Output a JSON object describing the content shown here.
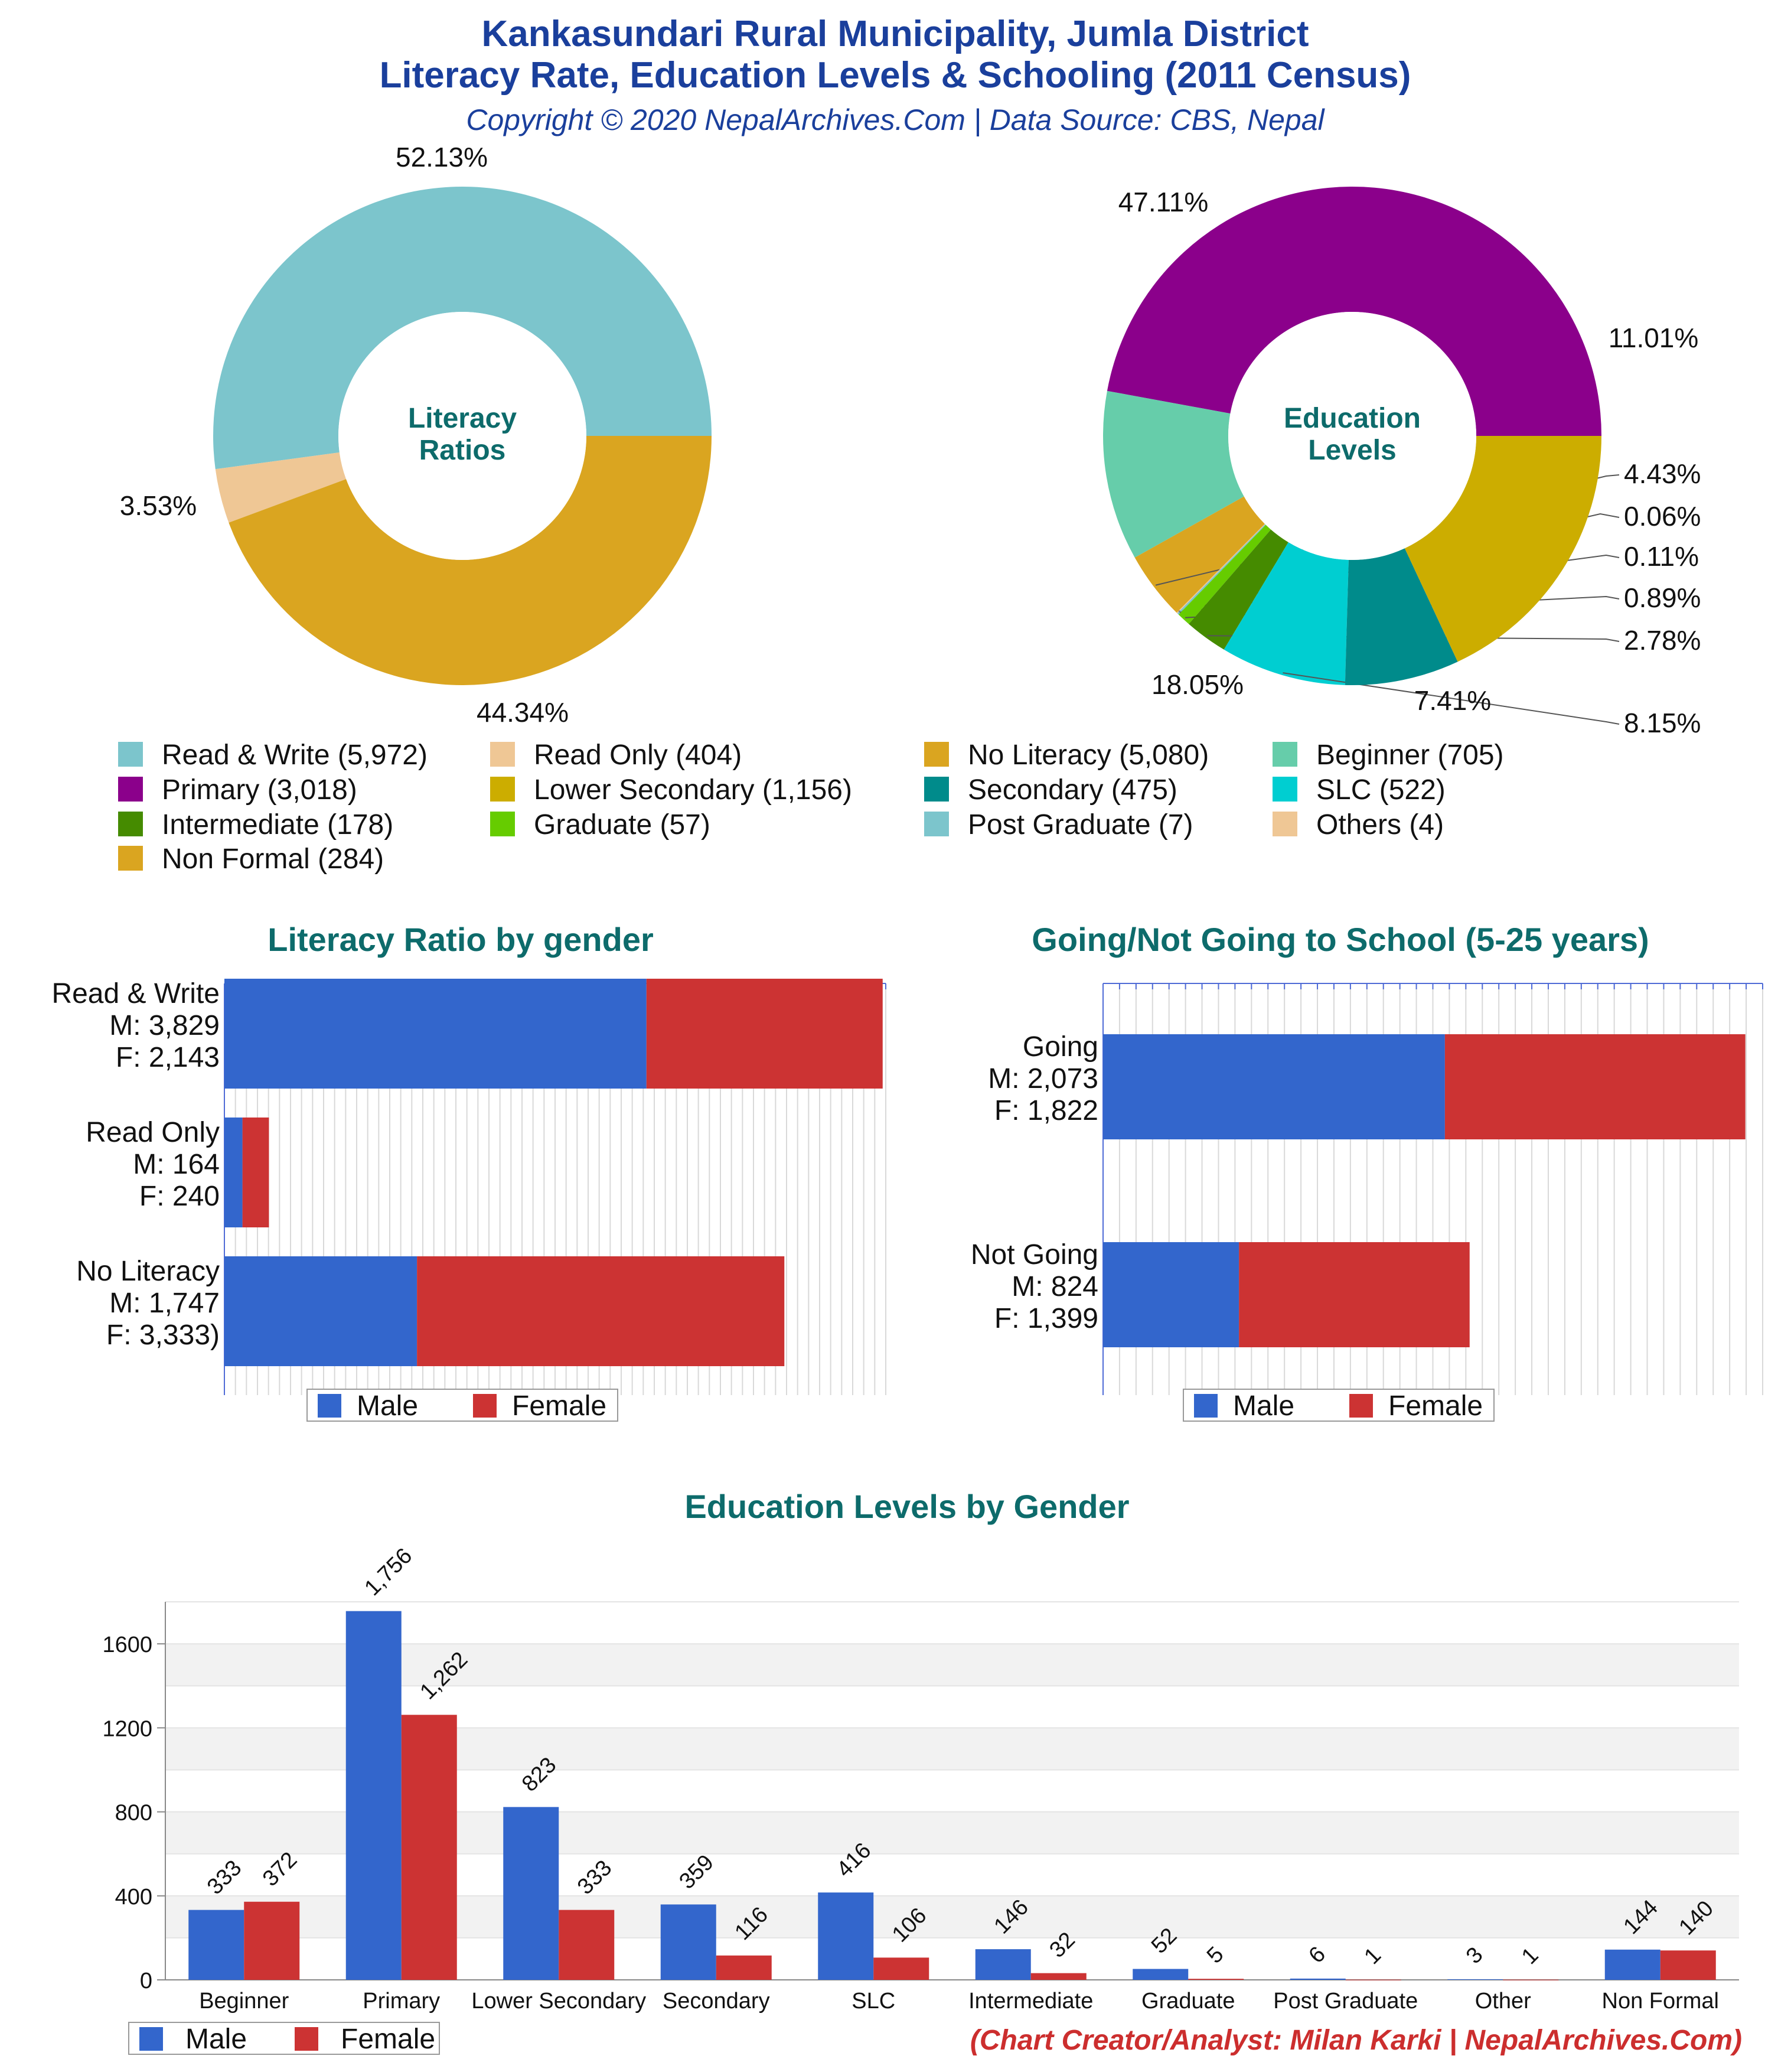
{
  "header": {
    "title_line1": "Kankasundari Rural Municipality, Jumla District",
    "title_line2": "Literacy Rate, Education Levels & Schooling (2011 Census)",
    "subtitle": "Copyright © 2020 NepalArchives.Com | Data Source: CBS, Nepal"
  },
  "footer": {
    "credit": "(Chart Creator/Analyst: Milan Karki | NepalArchives.Com)"
  },
  "colors": {
    "title": "#1a3f9c",
    "section_title": "#0d6b6b",
    "credit": "#cc2e2e",
    "male": "#3366cc",
    "female": "#cc3333"
  },
  "chart_data": [
    {
      "type": "pie",
      "donut": true,
      "center_label": [
        "Literacy",
        "Ratios"
      ],
      "slices": [
        {
          "label": "Read & Write",
          "value": 5972,
          "percent": "52.13%",
          "color": "#7cc5cc"
        },
        {
          "label": "Read Only",
          "value": 404,
          "percent": "3.53%",
          "color": "#efc795"
        },
        {
          "label": "No Literacy",
          "value": 5080,
          "percent": "44.34%",
          "color": "#daa520"
        }
      ]
    },
    {
      "type": "pie",
      "donut": true,
      "center_label": [
        "Education",
        "Levels"
      ],
      "slices": [
        {
          "label": "Primary",
          "value": 3018,
          "percent": "47.11%",
          "color": "#8b008b"
        },
        {
          "label": "Beginner",
          "value": 705,
          "percent": "11.01%",
          "color": "#66cdaa"
        },
        {
          "label": "Non Formal",
          "value": 284,
          "percent": "4.43%",
          "color": "#daa520"
        },
        {
          "label": "Others",
          "value": 4,
          "percent": "0.06%",
          "color": "#efc795"
        },
        {
          "label": "Post Graduate",
          "value": 7,
          "percent": "0.11%",
          "color": "#7cc5cc"
        },
        {
          "label": "Graduate",
          "value": 57,
          "percent": "0.89%",
          "color": "#66cc00"
        },
        {
          "label": "Intermediate",
          "value": 178,
          "percent": "2.78%",
          "color": "#458b00"
        },
        {
          "label": "SLC",
          "value": 522,
          "percent": "8.15%",
          "color": "#00ced1"
        },
        {
          "label": "Secondary",
          "value": 475,
          "percent": "7.41%",
          "color": "#008b8b"
        },
        {
          "label": "Lower Secondary",
          "value": 1156,
          "percent": "18.05%",
          "color": "#ccad00"
        }
      ]
    },
    {
      "type": "bar",
      "orientation": "horizontal",
      "stacked": true,
      "title": "Literacy Ratio by gender",
      "categories": [
        {
          "lines": [
            "Read & Write",
            "M: 3,829",
            "F: 2,143"
          ]
        },
        {
          "lines": [
            "Read Only",
            "M: 164",
            "F: 240"
          ]
        },
        {
          "lines": [
            "No Literacy",
            "M: 1,747",
            "F: 3,333)"
          ]
        }
      ],
      "series": [
        {
          "name": "Male",
          "values": [
            3829,
            164,
            1747
          ]
        },
        {
          "name": "Female",
          "values": [
            2143,
            240,
            3333
          ]
        }
      ],
      "xlim": [
        0,
        6000
      ],
      "legend": "bottom"
    },
    {
      "type": "bar",
      "orientation": "horizontal",
      "stacked": true,
      "title": "Going/Not Going to School (5-25 years)",
      "categories": [
        {
          "lines": [
            "Going",
            "M: 2,073",
            "F: 1,822"
          ]
        },
        {
          "lines": [
            "Not Going",
            "M: 824",
            "F: 1,399"
          ]
        }
      ],
      "series": [
        {
          "name": "Male",
          "values": [
            2073,
            824
          ]
        },
        {
          "name": "Female",
          "values": [
            1822,
            1399
          ]
        }
      ],
      "xlim": [
        0,
        4000
      ],
      "legend": "bottom"
    },
    {
      "type": "bar",
      "orientation": "vertical",
      "title": "Education Levels by Gender",
      "categories": [
        "Beginner",
        "Primary",
        "Lower Secondary",
        "Secondary",
        "SLC",
        "Intermediate",
        "Graduate",
        "Post Graduate",
        "Other",
        "Non Formal"
      ],
      "series": [
        {
          "name": "Male",
          "values": [
            333,
            1756,
            823,
            359,
            416,
            146,
            52,
            6,
            3,
            144
          ],
          "labels": [
            "333",
            "1,756",
            "823",
            "359",
            "416",
            "146",
            "52",
            "6",
            "3",
            "144"
          ]
        },
        {
          "name": "Female",
          "values": [
            372,
            1262,
            333,
            116,
            106,
            32,
            5,
            1,
            1,
            140
          ],
          "labels": [
            "372",
            "1,262",
            "333",
            "116",
            "106",
            "32",
            "5",
            "1",
            "1",
            "140"
          ]
        }
      ],
      "yticks": [
        0,
        400,
        800,
        1200,
        1600
      ],
      "ylim": [
        0,
        1800
      ],
      "legend": "bottom-left"
    }
  ],
  "legend_main": [
    [
      "Read & Write (5,972)",
      "#7cc5cc"
    ],
    [
      "Read Only (404)",
      "#efc795"
    ],
    [
      "No Literacy (5,080)",
      "#daa520"
    ],
    [
      "Beginner (705)",
      "#66cdaa"
    ],
    [
      "Primary (3,018)",
      "#8b008b"
    ],
    [
      "Lower Secondary (1,156)",
      "#ccad00"
    ],
    [
      "Secondary (475)",
      "#008b8b"
    ],
    [
      "SLC (522)",
      "#00ced1"
    ],
    [
      "Intermediate (178)",
      "#458b00"
    ],
    [
      "Graduate (57)",
      "#66cc00"
    ],
    [
      "Post Graduate (7)",
      "#7cc5cc"
    ],
    [
      "Others (4)",
      "#efc795"
    ],
    [
      "Non Formal (284)",
      "#daa520"
    ]
  ]
}
